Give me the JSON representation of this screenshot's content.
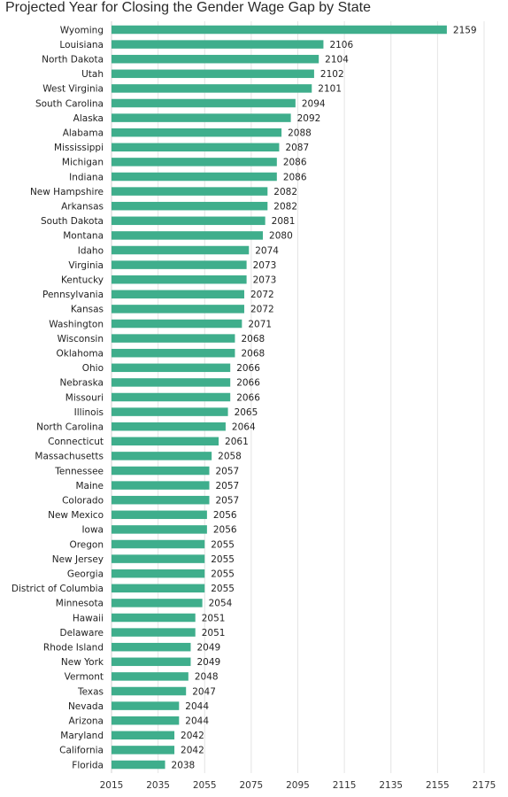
{
  "chart_data": {
    "type": "bar",
    "orientation": "horizontal",
    "title": "Projected Year for Closing the Gender Wage Gap by State",
    "bar_color": "#3fae8c",
    "grid": true,
    "xlim": [
      2015,
      2175
    ],
    "x_ticks": [
      2015,
      2035,
      2055,
      2075,
      2095,
      2115,
      2135,
      2155,
      2175
    ],
    "categories": [
      "Wyoming",
      "Louisiana",
      "North Dakota",
      "Utah",
      "West Virginia",
      "South Carolina",
      "Alaska",
      "Alabama",
      "Mississippi",
      "Michigan",
      "Indiana",
      "New Hampshire",
      "Arkansas",
      "South Dakota",
      "Montana",
      "Idaho",
      "Virginia",
      "Kentucky",
      "Pennsylvania",
      "Kansas",
      "Washington",
      "Wisconsin",
      "Oklahoma",
      "Ohio",
      "Nebraska",
      "Missouri",
      "Illinois",
      "North Carolina",
      "Connecticut",
      "Massachusetts",
      "Tennessee",
      "Maine",
      "Colorado",
      "New Mexico",
      "Iowa",
      "Oregon",
      "New Jersey",
      "Georgia",
      "District of Columbia",
      "Minnesota",
      "Hawaii",
      "Delaware",
      "Rhode Island",
      "New York",
      "Vermont",
      "Texas",
      "Nevada",
      "Arizona",
      "Maryland",
      "California",
      "Florida"
    ],
    "values": [
      2159,
      2106,
      2104,
      2102,
      2101,
      2094,
      2092,
      2088,
      2087,
      2086,
      2086,
      2082,
      2082,
      2081,
      2080,
      2074,
      2073,
      2073,
      2072,
      2072,
      2071,
      2068,
      2068,
      2066,
      2066,
      2066,
      2065,
      2064,
      2061,
      2058,
      2057,
      2057,
      2057,
      2056,
      2056,
      2055,
      2055,
      2055,
      2055,
      2054,
      2051,
      2051,
      2049,
      2049,
      2048,
      2047,
      2044,
      2044,
      2042,
      2042,
      2038
    ]
  }
}
